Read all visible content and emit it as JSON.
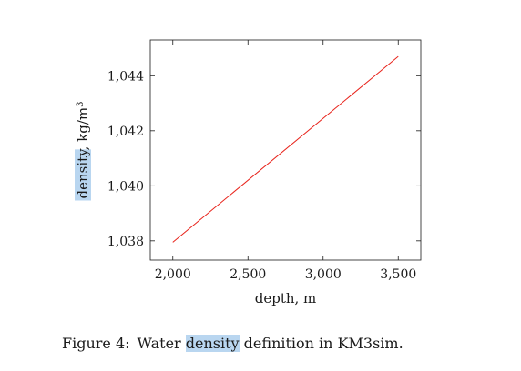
{
  "chart_data": {
    "type": "line",
    "xlabel": "depth, m",
    "ylabel": "density, kg/m",
    "ylabel_superscript": "3",
    "xlim": [
      1850,
      3650
    ],
    "ylim": [
      1037.3,
      1045.3
    ],
    "xticks": [
      2000,
      2500,
      3000,
      3500
    ],
    "xtick_labels": [
      "2,000",
      "2,500",
      "3,000",
      "3,500"
    ],
    "yticks": [
      1038,
      1040,
      1042,
      1044
    ],
    "ytick_labels": [
      "1,038",
      "1,040",
      "1,042",
      "1,044"
    ],
    "series": [
      {
        "x": [
          2000,
          3500
        ],
        "y": [
          1037.95,
          1044.7
        ]
      }
    ],
    "grid": false,
    "colors": {
      "line": "#e8231b",
      "frame": "#1a1a1a",
      "highlight": "#b9d6f0"
    }
  },
  "caption": {
    "prefix": "Figure 4:",
    "before": "Water ",
    "highlighted": "density",
    "after": " definition in KM3sim."
  }
}
